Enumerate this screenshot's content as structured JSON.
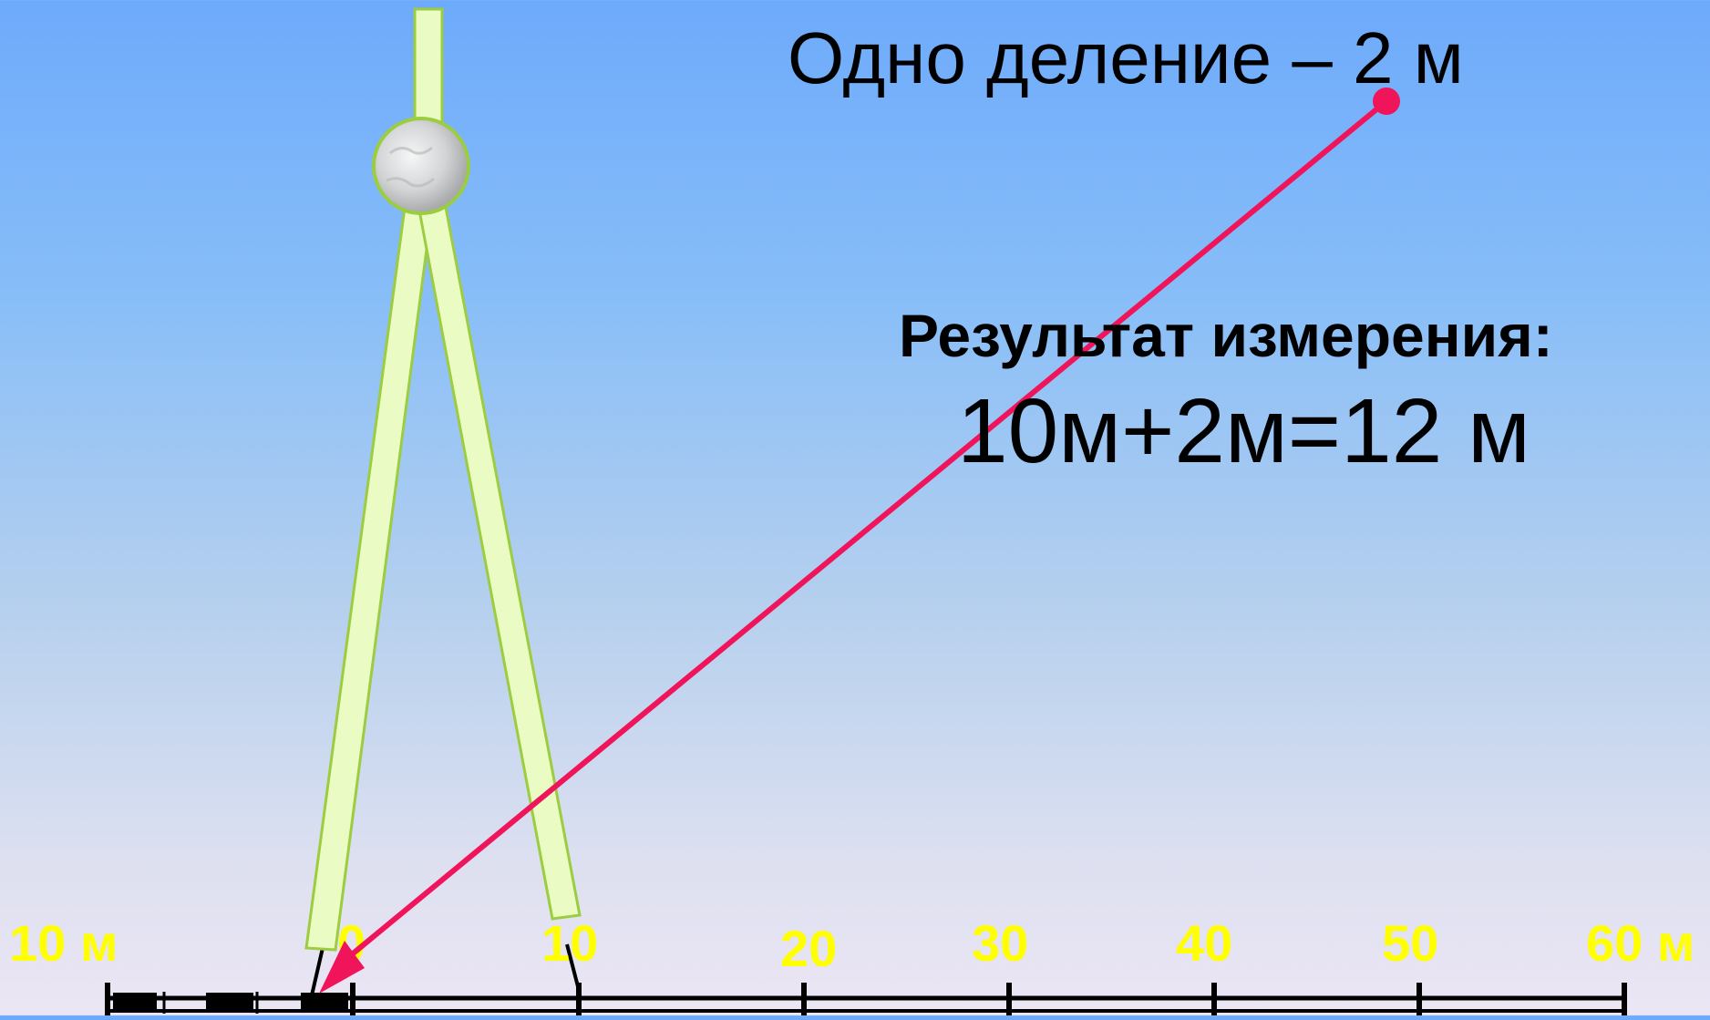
{
  "header": {
    "scale_note": "Одно деление – 2 м"
  },
  "result": {
    "title": "Результат измерения:",
    "formula": "10м+2м=12 м"
  },
  "scale": {
    "labels": [
      "10 м",
      "0",
      "10",
      "20",
      "30",
      "40",
      "50",
      "60 м"
    ],
    "label_color": "#ffff00",
    "line_color": "#000000"
  },
  "colors": {
    "arrow": "#f0145a",
    "compass_leg": "#eafcc4",
    "compass_leg_border": "#9ccc40"
  },
  "icons": {
    "compass": "compass-icon",
    "arrow": "pointer-arrow"
  }
}
